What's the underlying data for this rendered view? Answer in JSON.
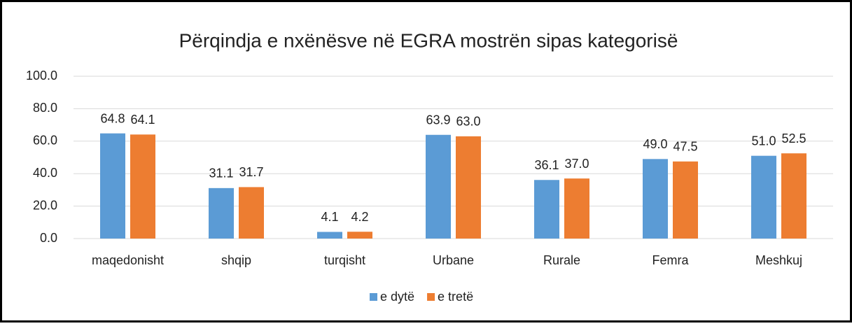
{
  "chart_data": {
    "type": "bar",
    "title": "Përqindja e nxënësve në EGRA mostrën sipas kategorisë",
    "categories": [
      "maqedonisht",
      "shqip",
      "turqisht",
      "Urbane",
      "Rurale",
      "Femra",
      "Meshkuj"
    ],
    "series": [
      {
        "name": "e dytë",
        "color": "#5b9bd5",
        "values": [
          64.8,
          31.1,
          4.1,
          63.9,
          36.1,
          49.0,
          51.0
        ],
        "value_labels": [
          "64.8",
          "31.1",
          "4.1",
          "63.9",
          "36.1",
          "49.0",
          "51.0"
        ]
      },
      {
        "name": "e tretë",
        "color": "#ed7d31",
        "values": [
          64.1,
          31.7,
          4.2,
          63.0,
          37.0,
          47.5,
          52.5
        ],
        "value_labels": [
          "64.1",
          "31.7",
          "4.2",
          "63.0",
          "37.0",
          "47.5",
          "52.5"
        ]
      }
    ],
    "ylim": [
      0,
      100
    ],
    "yticks": [
      {
        "value": 0,
        "label": "0.0"
      },
      {
        "value": 20,
        "label": "20.0"
      },
      {
        "value": 40,
        "label": "40.0"
      },
      {
        "value": 60,
        "label": "60.0"
      },
      {
        "value": 80,
        "label": "80.0"
      },
      {
        "value": 100,
        "label": "100.0"
      }
    ],
    "grid": true,
    "legend": "bottom"
  }
}
